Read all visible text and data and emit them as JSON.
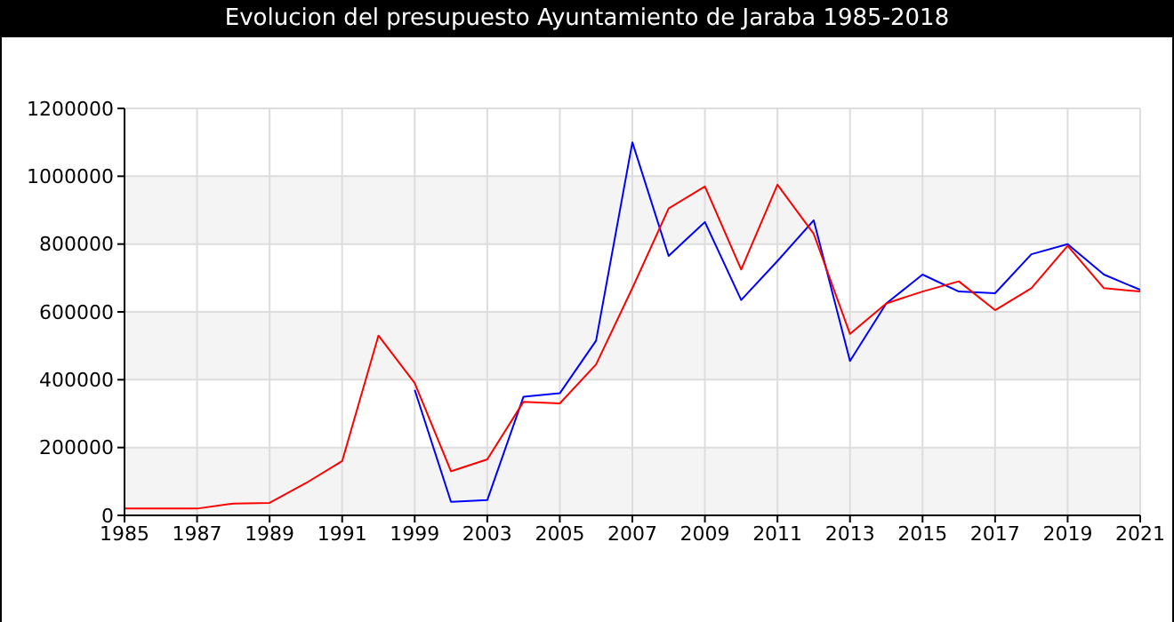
{
  "chart_data": {
    "type": "line",
    "title": "Evolucion del presupuesto Ayuntamiento de Jaraba 1985-2018",
    "categories": [
      "1985",
      null,
      "1987",
      null,
      "1989",
      null,
      "1991",
      null,
      "1999",
      null,
      "2003",
      null,
      "2005",
      null,
      "2007",
      null,
      "2009",
      null,
      "2011",
      null,
      "2013",
      null,
      "2015",
      null,
      "2017",
      null,
      "2019",
      null,
      "2021"
    ],
    "series": [
      {
        "color": "#0000ff",
        "values": [
          null,
          null,
          null,
          null,
          null,
          null,
          null,
          null,
          370000,
          40000,
          45000,
          350000,
          360000,
          515000,
          1100000,
          765000,
          865000,
          635000,
          750000,
          870000,
          455000,
          625000,
          710000,
          660000,
          655000,
          770000,
          800000,
          710000,
          665000
        ]
      },
      {
        "color": "#ff0000",
        "values": [
          20000,
          20000,
          20000,
          35000,
          37000,
          95000,
          160000,
          530000,
          390000,
          130000,
          165000,
          335000,
          330000,
          445000,
          670000,
          905000,
          970000,
          725000,
          975000,
          830000,
          535000,
          625000,
          660000,
          690000,
          605000,
          670000,
          795000,
          670000,
          660000
        ]
      }
    ],
    "ylim": [
      0,
      1200000
    ],
    "yticks": [
      0,
      200000,
      400000,
      600000,
      800000,
      1000000,
      1200000
    ],
    "grid": true,
    "marker": "none",
    "line_style": "solid"
  }
}
